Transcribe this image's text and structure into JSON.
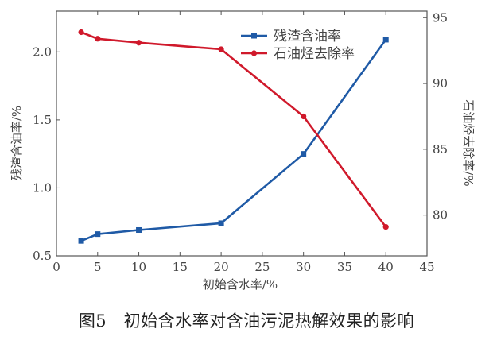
{
  "figure": {
    "caption": "图5　初始含水率对含油污泥热解效果的影响"
  },
  "chart_data": {
    "type": "line",
    "xlabel": "初始含水率/%",
    "ylabel_left": "残渣含油率/%",
    "ylabel_right": "石油烃去除率/%",
    "xlim": [
      0,
      45
    ],
    "xticks": [
      0,
      5,
      10,
      15,
      20,
      25,
      30,
      35,
      40,
      45
    ],
    "ylim_left": [
      0.5,
      2.3
    ],
    "yticks_left": [
      0.5,
      1.0,
      1.5,
      2.0
    ],
    "ylim_right": [
      76.9,
      95.5
    ],
    "yticks_right": [
      80,
      85,
      90,
      95
    ],
    "grid": false,
    "legend_position": "top-center",
    "series": [
      {
        "name": "残渣含油率",
        "axis": "left",
        "color": "#1f5aa6",
        "marker": "square",
        "x": [
          3,
          5,
          10,
          20,
          30,
          40
        ],
        "y": [
          0.61,
          0.66,
          0.69,
          0.74,
          1.25,
          2.09
        ]
      },
      {
        "name": "石油烃去除率",
        "axis": "right",
        "color": "#d0192b",
        "marker": "circle",
        "x": [
          3,
          5,
          10,
          20,
          30,
          40
        ],
        "y": [
          93.9,
          93.4,
          93.1,
          92.6,
          87.5,
          79.1
        ]
      }
    ]
  }
}
